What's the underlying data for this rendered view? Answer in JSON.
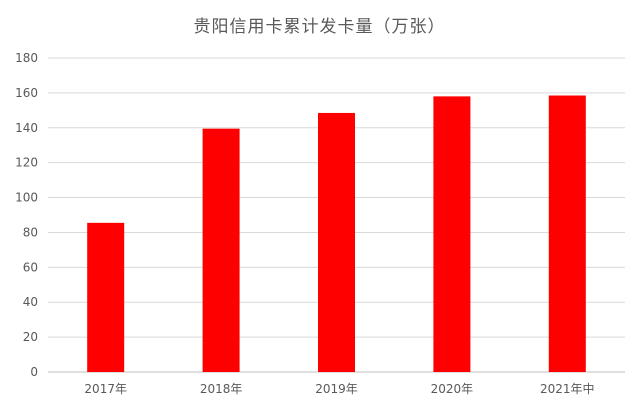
{
  "chart_data": {
    "type": "bar",
    "title": "贵阳信用卡累计发卡量（万张）",
    "categories": [
      "2017年",
      "2018年",
      "2019年",
      "2020年",
      "2021年中"
    ],
    "values": [
      85.5,
      139.5,
      148.5,
      158,
      158.5
    ],
    "xlabel": "",
    "ylabel": "",
    "ylim": [
      0,
      180
    ],
    "yticks": [
      0,
      20,
      40,
      60,
      80,
      100,
      120,
      140,
      160,
      180
    ],
    "grid": true,
    "legend": "none",
    "bar_color": "#ff0000",
    "grid_color": "#d9d9d9",
    "axis_color": "#bfbfbf"
  }
}
